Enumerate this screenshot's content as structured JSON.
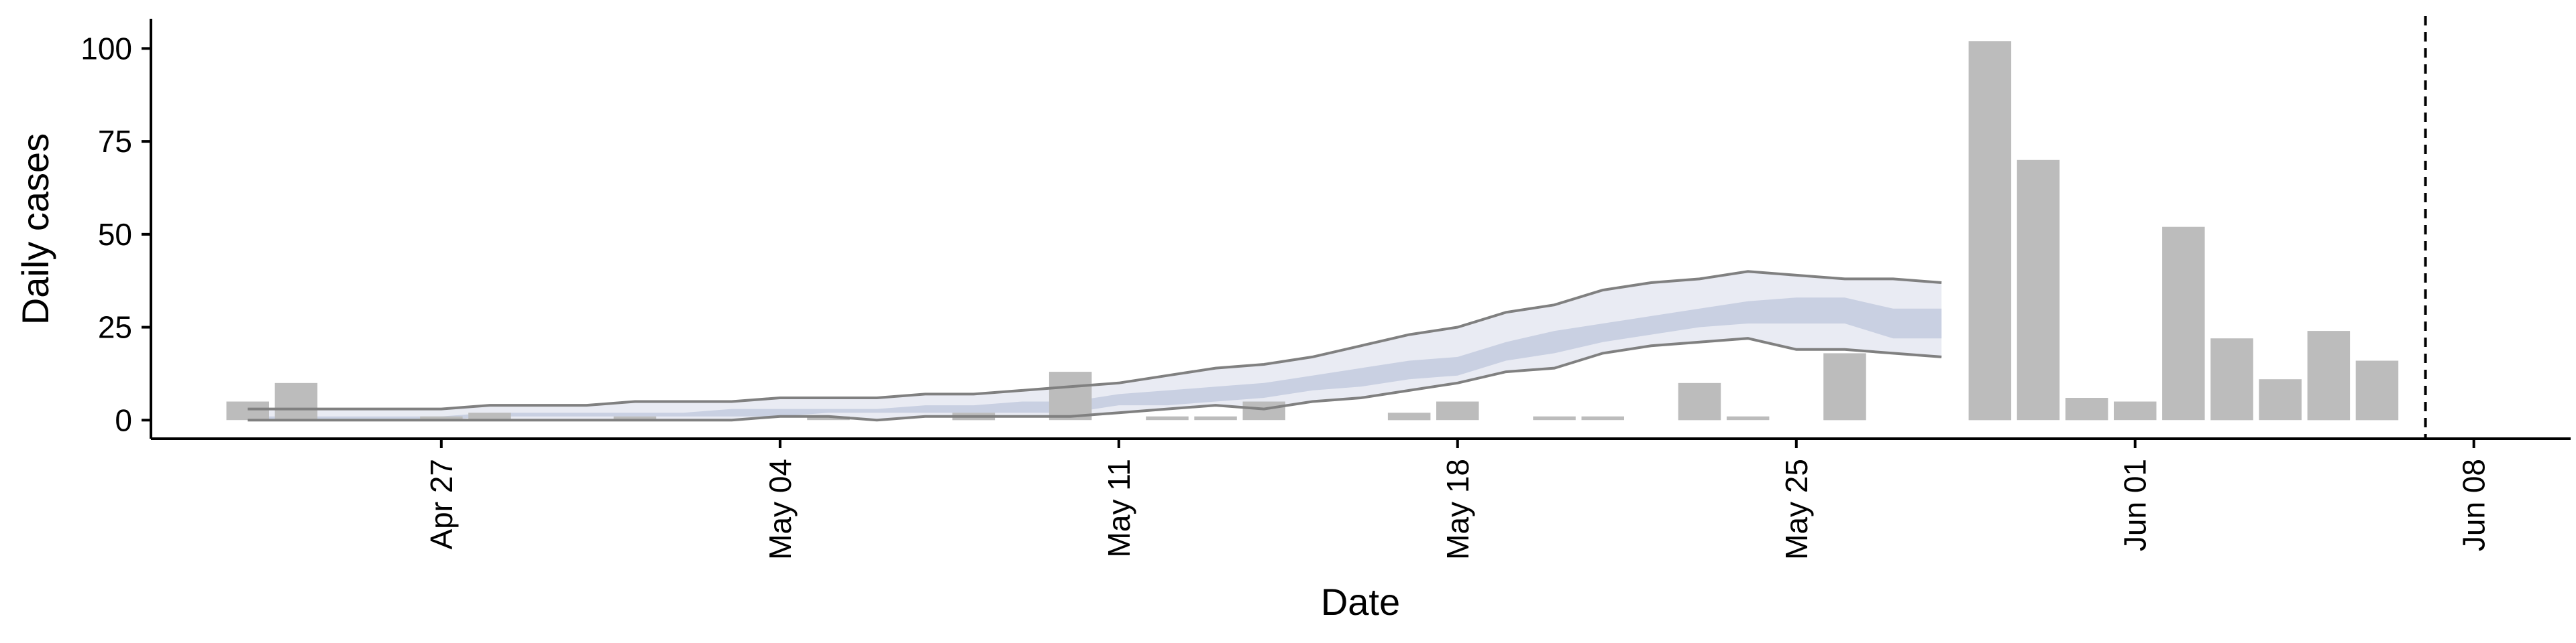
{
  "chart_data": {
    "type": "bar",
    "xlabel": "Date",
    "ylabel": "Daily cases",
    "x_axis_type": "date",
    "x_range": [
      "2020-04-21",
      "2020-06-10"
    ],
    "ylim": [
      -5,
      108
    ],
    "y_ticks": [
      0,
      25,
      50,
      75,
      100
    ],
    "x_ticks": [
      {
        "date": "2020-04-27",
        "label": "Apr 27"
      },
      {
        "date": "2020-05-04",
        "label": "May 04"
      },
      {
        "date": "2020-05-11",
        "label": "May 11"
      },
      {
        "date": "2020-05-18",
        "label": "May 18"
      },
      {
        "date": "2020-05-25",
        "label": "May 25"
      },
      {
        "date": "2020-06-01",
        "label": "Jun 01"
      },
      {
        "date": "2020-06-08",
        "label": "Jun 08"
      }
    ],
    "grid": false,
    "reference_line": {
      "date": "2020-06-07",
      "style": "dashed"
    },
    "bars": {
      "color": "#bcbcbc",
      "data": [
        {
          "date": "2020-04-23",
          "value": 5
        },
        {
          "date": "2020-04-24",
          "value": 10
        },
        {
          "date": "2020-04-27",
          "value": 1
        },
        {
          "date": "2020-04-28",
          "value": 2
        },
        {
          "date": "2020-05-01",
          "value": 1
        },
        {
          "date": "2020-05-05",
          "value": 1
        },
        {
          "date": "2020-05-08",
          "value": 2
        },
        {
          "date": "2020-05-10",
          "value": 13
        },
        {
          "date": "2020-05-12",
          "value": 1
        },
        {
          "date": "2020-05-13",
          "value": 1
        },
        {
          "date": "2020-05-14",
          "value": 5
        },
        {
          "date": "2020-05-17",
          "value": 2
        },
        {
          "date": "2020-05-18",
          "value": 5
        },
        {
          "date": "2020-05-20",
          "value": 1
        },
        {
          "date": "2020-05-21",
          "value": 1
        },
        {
          "date": "2020-05-23",
          "value": 10
        },
        {
          "date": "2020-05-24",
          "value": 1
        },
        {
          "date": "2020-05-26",
          "value": 18
        },
        {
          "date": "2020-05-29",
          "value": 102
        },
        {
          "date": "2020-05-30",
          "value": 70
        },
        {
          "date": "2020-05-31",
          "value": 6
        },
        {
          "date": "2020-06-01",
          "value": 5
        },
        {
          "date": "2020-06-02",
          "value": 52
        },
        {
          "date": "2020-06-03",
          "value": 22
        },
        {
          "date": "2020-06-04",
          "value": 11
        },
        {
          "date": "2020-06-05",
          "value": 24
        },
        {
          "date": "2020-06-06",
          "value": 16
        }
      ]
    },
    "estimate": {
      "colors": {
        "outer_band": "#e9ebf3",
        "inner_band": "#c9d0e2",
        "outer_lines": "#808080"
      },
      "dates": [
        "2020-04-23",
        "2020-04-24",
        "2020-04-25",
        "2020-04-26",
        "2020-04-27",
        "2020-04-28",
        "2020-04-29",
        "2020-04-30",
        "2020-05-01",
        "2020-05-02",
        "2020-05-03",
        "2020-05-04",
        "2020-05-05",
        "2020-05-06",
        "2020-05-07",
        "2020-05-08",
        "2020-05-09",
        "2020-05-10",
        "2020-05-11",
        "2020-05-12",
        "2020-05-13",
        "2020-05-14",
        "2020-05-15",
        "2020-05-16",
        "2020-05-17",
        "2020-05-18",
        "2020-05-19",
        "2020-05-20",
        "2020-05-21",
        "2020-05-22",
        "2020-05-23",
        "2020-05-24",
        "2020-05-25",
        "2020-05-26",
        "2020-05-27",
        "2020-05-28"
      ],
      "lower_90": [
        0,
        0,
        0,
        0,
        0,
        0,
        0,
        0,
        0,
        0,
        0,
        1,
        1,
        0,
        1,
        1,
        1,
        1,
        2,
        3,
        4,
        3,
        5,
        6,
        8,
        10,
        13,
        14,
        18,
        20,
        21,
        22,
        19,
        19,
        18,
        17
      ],
      "upper_90": [
        3,
        3,
        3,
        3,
        3,
        4,
        4,
        4,
        5,
        5,
        5,
        6,
        6,
        6,
        7,
        7,
        8,
        9,
        10,
        12,
        14,
        15,
        17,
        20,
        23,
        25,
        29,
        31,
        35,
        37,
        38,
        40,
        39,
        38,
        38,
        37
      ],
      "lower_50": [
        0,
        0,
        0,
        0,
        0,
        1,
        1,
        1,
        1,
        1,
        1,
        1,
        2,
        2,
        2,
        2,
        2,
        2,
        4,
        4,
        5,
        6,
        8,
        9,
        11,
        12,
        16,
        18,
        21,
        23,
        25,
        26,
        26,
        26,
        22,
        22
      ],
      "upper_50": [
        1,
        1,
        1,
        1,
        1,
        2,
        2,
        2,
        2,
        2,
        3,
        3,
        3,
        3,
        4,
        4,
        5,
        5,
        7,
        8,
        9,
        10,
        12,
        14,
        16,
        17,
        21,
        24,
        26,
        28,
        30,
        32,
        33,
        33,
        30,
        30
      ]
    }
  }
}
